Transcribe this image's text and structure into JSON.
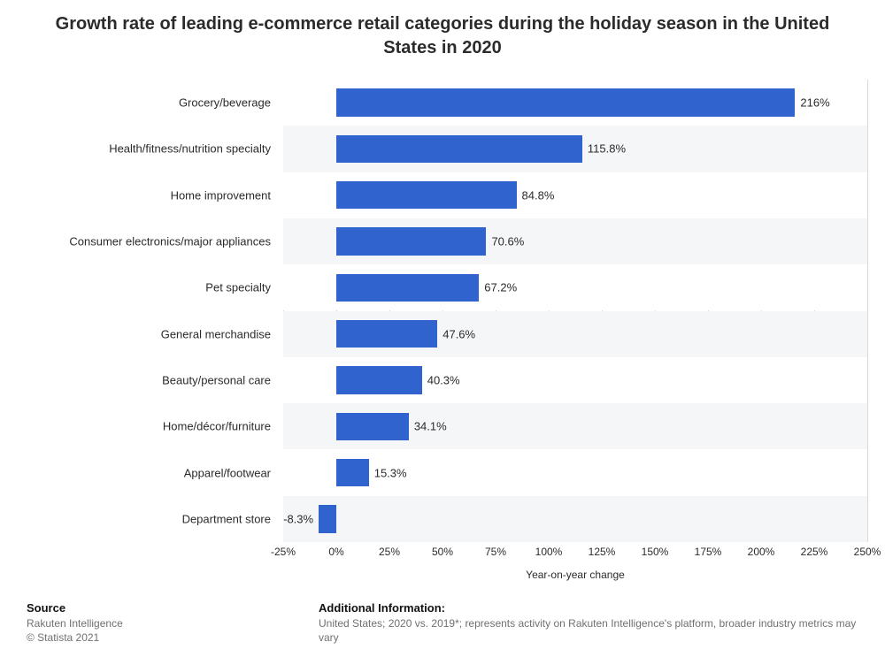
{
  "title": "Growth rate of leading e-commerce retail categories during the holiday season in the United States in 2020",
  "title_fontsize": 20,
  "chart": {
    "type": "bar-horizontal",
    "categories": [
      "Grocery/beverage",
      "Health/fitness/nutrition specialty",
      "Home improvement",
      "Consumer electronics/major appliances",
      "Pet specialty",
      "General merchandise",
      "Beauty/personal care",
      "Home/décor/furniture",
      "Apparel/footwear",
      "Department store"
    ],
    "values": [
      216,
      115.8,
      84.8,
      70.6,
      67.2,
      47.6,
      40.3,
      34.1,
      15.3,
      -8.3
    ],
    "value_labels": [
      "216%",
      "115.8%",
      "84.8%",
      "70.6%",
      "67.2%",
      "47.6%",
      "40.3%",
      "34.1%",
      "15.3%",
      "-8.3%"
    ],
    "bar_color": "#3063cd",
    "band_colors": [
      "#ffffff",
      "#f5f6f7"
    ],
    "xlim": [
      -25,
      250
    ],
    "xtick_step": 25,
    "xtick_labels": [
      "-25%",
      "0%",
      "25%",
      "50%",
      "75%",
      "100%",
      "125%",
      "150%",
      "175%",
      "200%",
      "225%",
      "250%"
    ],
    "x_title": "Year-on-year change",
    "grid_color": "#d9d9d9",
    "background_color": "#ffffff",
    "cat_label_fontsize": 13,
    "value_label_fontsize": 13,
    "tick_label_fontsize": 12
  },
  "footer": {
    "source_hdr": "Source",
    "source_body": "Rakuten Intelligence\n© Statista 2021",
    "addl_hdr": "Additional Information:",
    "addl_body": "United States; 2020 vs. 2019*; represents activity on Rakuten Intelligence's platform, broader industry metrics may vary"
  }
}
